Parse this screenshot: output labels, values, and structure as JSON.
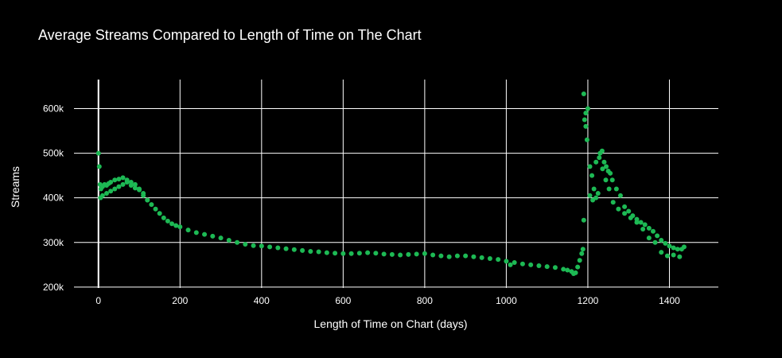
{
  "chart_data": {
    "type": "scatter",
    "title": "Average Streams Compared to Length of Time on The Chart",
    "xlabel": "Length of Time on Chart (days)",
    "ylabel": "Streams",
    "xlim": [
      -60,
      1520
    ],
    "ylim": [
      198000,
      665000
    ],
    "x_ticks": [
      0,
      200,
      400,
      600,
      800,
      1000,
      1200,
      1400
    ],
    "x_tick_labels": [
      "0",
      "200",
      "400",
      "600",
      "800",
      "1000",
      "1200",
      "1400"
    ],
    "y_ticks": [
      200000,
      300000,
      400000,
      500000,
      600000
    ],
    "y_tick_labels": [
      "200k",
      "300k",
      "400k",
      "500k",
      "600k"
    ],
    "grid": true,
    "legend": "none",
    "colors": {
      "background": "#000000",
      "grid": "#ffffff",
      "text": "#ffffff",
      "marker": "#1db954"
    },
    "series": [
      {
        "x": [
          0,
          2,
          4,
          6,
          10,
          15,
          20,
          25,
          30,
          40,
          50,
          60,
          70,
          80,
          90,
          100,
          110,
          120,
          130,
          140,
          150,
          160,
          170,
          180,
          190,
          200,
          220,
          240,
          260,
          280,
          300,
          320,
          340,
          360,
          380,
          400,
          420,
          440,
          460,
          480,
          500,
          520,
          540,
          560,
          580,
          600,
          620,
          640,
          660,
          680,
          700,
          720,
          740,
          760,
          780,
          800,
          820,
          840,
          860,
          880,
          900,
          920,
          940,
          960,
          980,
          1000,
          1010,
          1020,
          1040,
          1060,
          1080,
          1100,
          1120,
          1140,
          1150,
          1160,
          1165,
          1170,
          1175,
          1180,
          1185,
          1188,
          1190,
          1195,
          1200,
          1205,
          1210,
          1215,
          1220,
          1225,
          1230,
          1235,
          1240,
          1245,
          1250,
          1255,
          1260,
          1270,
          1280,
          1290,
          1300,
          1310,
          1320,
          1330,
          1340,
          1350,
          1360,
          1370,
          1380,
          1390,
          1400,
          1410,
          1420,
          1430,
          1436
        ],
        "y": [
          500000,
          470000,
          430000,
          420000,
          425000,
          430000,
          428000,
          432000,
          435000,
          440000,
          442000,
          445000,
          440000,
          435000,
          430000,
          420000,
          410000,
          395000,
          385000,
          375000,
          365000,
          355000,
          348000,
          342000,
          338000,
          335000,
          328000,
          322000,
          318000,
          314000,
          310000,
          305000,
          300000,
          296000,
          293000,
          292000,
          290000,
          288000,
          286000,
          284000,
          282000,
          280000,
          279000,
          277000,
          276000,
          275000,
          275000,
          276000,
          277000,
          276000,
          274000,
          273000,
          272000,
          273000,
          274000,
          275000,
          272000,
          270000,
          268000,
          270000,
          270000,
          268000,
          266000,
          264000,
          262000,
          258000,
          250000,
          255000,
          252000,
          250000,
          248000,
          246000,
          244000,
          240000,
          238000,
          235000,
          230000,
          232000,
          245000,
          260000,
          275000,
          285000,
          350000,
          590000,
          600000,
          470000,
          450000,
          420000,
          400000,
          410000,
          500000,
          505000,
          480000,
          470000,
          460000,
          455000,
          440000,
          420000,
          405000,
          380000,
          370000,
          360000,
          352000,
          345000,
          340000,
          332000,
          325000,
          315000,
          305000,
          298000,
          292000,
          288000,
          285000,
          285000,
          290000
        ]
      },
      {
        "x": [
          5,
          10,
          20,
          30,
          40,
          50,
          60,
          70,
          80,
          90,
          100,
          110,
          120,
          1190,
          1192,
          1195,
          1198,
          1205,
          1212,
          1220,
          1228,
          1236,
          1244,
          1252,
          1262,
          1275,
          1290,
          1305,
          1320,
          1335,
          1350,
          1365,
          1380,
          1395,
          1410,
          1425
        ],
        "y": [
          400000,
          405000,
          410000,
          415000,
          420000,
          425000,
          430000,
          435000,
          428000,
          422000,
          418000,
          405000,
          395000,
          633000,
          575000,
          560000,
          530000,
          405000,
          395000,
          480000,
          490000,
          465000,
          440000,
          420000,
          390000,
          375000,
          365000,
          355000,
          345000,
          330000,
          310000,
          300000,
          278000,
          270000,
          272000,
          268000
        ]
      }
    ]
  }
}
